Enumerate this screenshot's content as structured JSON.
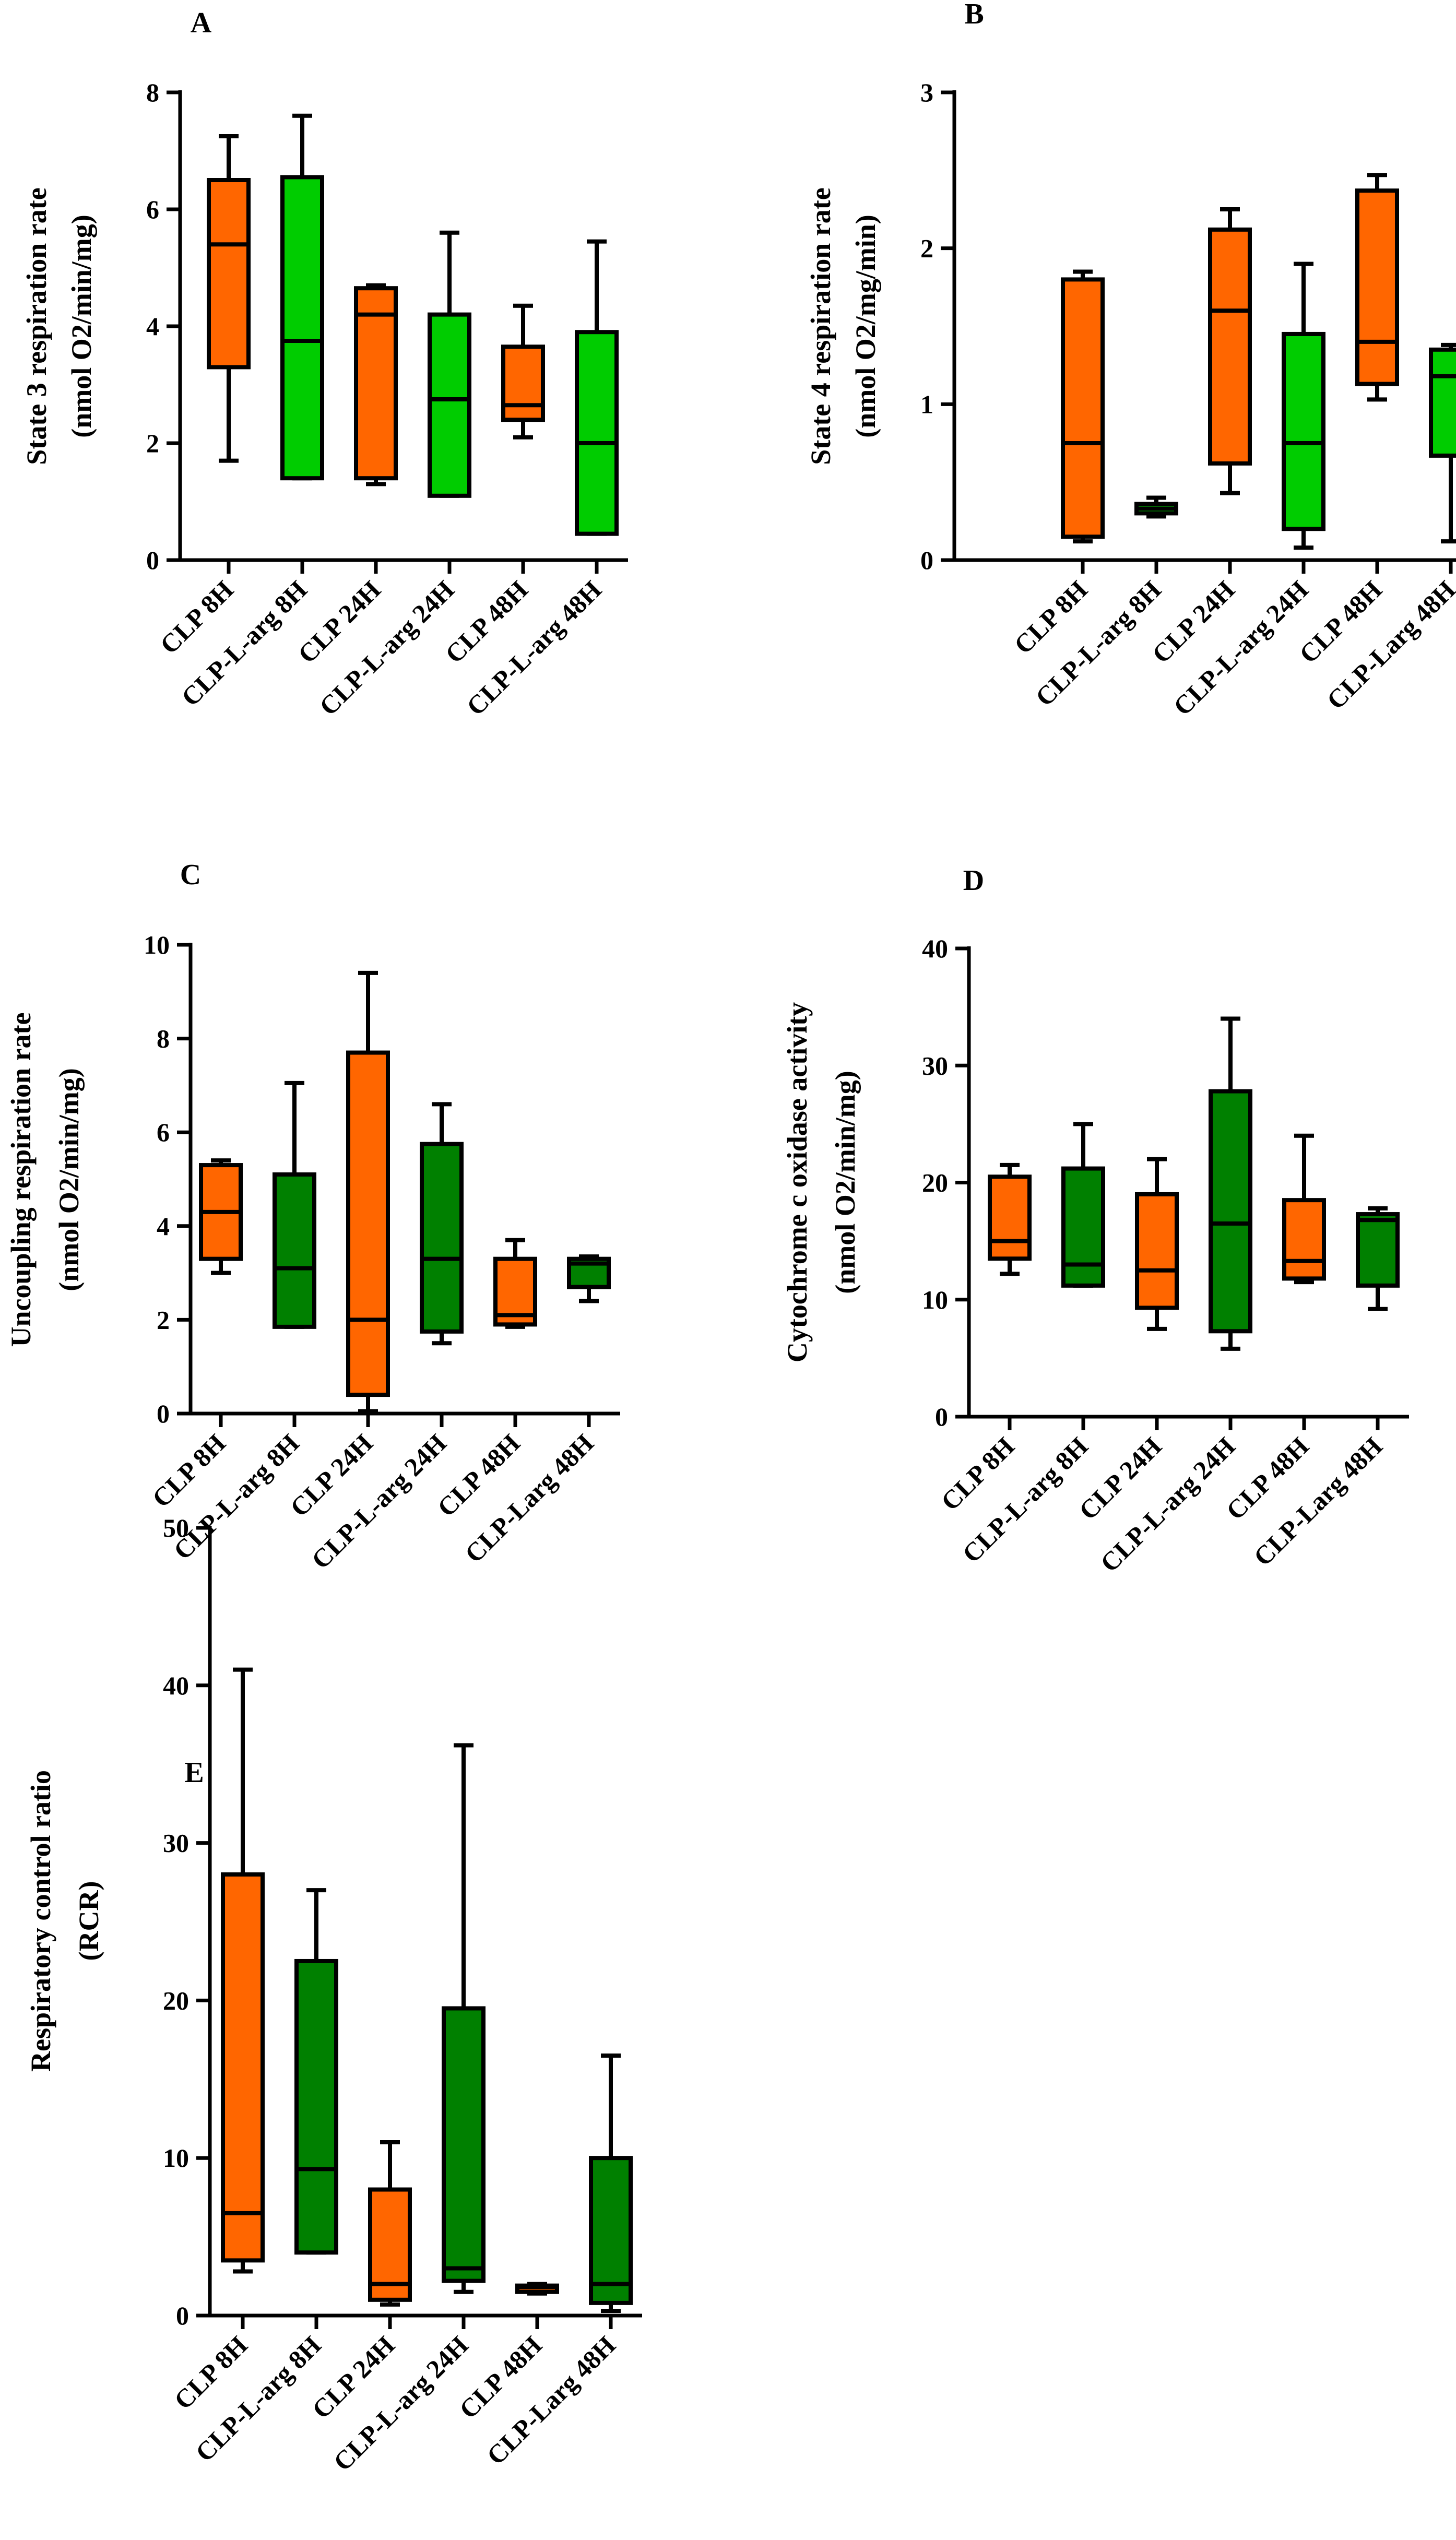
{
  "chart_data": [
    {
      "type": "box",
      "panel_label": "A",
      "ylabel": [
        "State 3 respiration rate",
        "(nmol O2/min/mg)"
      ],
      "ylim": [
        0,
        8
      ],
      "yticks": [
        0,
        2,
        4,
        6,
        8
      ],
      "categories": [
        "CLP 8H",
        "CLP-L-arg 8H",
        "CLP 24H",
        "CLP-L-arg 24H",
        "CLP 48H",
        "CLP-L-arg 48H"
      ],
      "boxes": [
        {
          "min": 1.7,
          "q1": 3.3,
          "median": 5.4,
          "q3": 6.5,
          "max": 7.25,
          "color": "#FF6600"
        },
        {
          "min": 1.4,
          "q1": 1.4,
          "median": 3.75,
          "q3": 6.55,
          "max": 7.6,
          "color": "#00CC00"
        },
        {
          "min": 1.3,
          "q1": 1.4,
          "median": 4.2,
          "q3": 4.65,
          "max": 4.7,
          "color": "#FF6600"
        },
        {
          "min": 1.1,
          "q1": 1.1,
          "median": 2.75,
          "q3": 4.2,
          "max": 5.6,
          "color": "#00CC00"
        },
        {
          "min": 2.1,
          "q1": 2.4,
          "median": 2.65,
          "q3": 3.65,
          "max": 4.35,
          "color": "#FF6600"
        },
        {
          "min": 0.45,
          "q1": 0.45,
          "median": 2.0,
          "q3": 3.9,
          "max": 5.45,
          "color": "#00CC00"
        }
      ]
    },
    {
      "type": "box",
      "panel_label": "B",
      "ylabel": [
        "State 4 respiration rate",
        "(nmol O2/mg/min)"
      ],
      "ylim": [
        0,
        3
      ],
      "yticks": [
        0,
        1,
        2,
        3
      ],
      "categories": [
        "CLP 8H",
        "CLP-L-arg 8H",
        "CLP 24H",
        "CLP-L-arg 24H",
        "CLP 48H",
        "CLP-Larg 48H"
      ],
      "boxes": [
        {
          "min": 0.12,
          "q1": 0.15,
          "median": 0.75,
          "q3": 1.8,
          "max": 1.85,
          "color": "#FF6600"
        },
        {
          "min": 0.28,
          "q1": 0.3,
          "median": 0.33,
          "q3": 0.36,
          "max": 0.4,
          "color": "#00CC00"
        },
        {
          "min": 0.43,
          "q1": 0.62,
          "median": 1.6,
          "q3": 2.12,
          "max": 2.25,
          "color": "#FF6600"
        },
        {
          "min": 0.08,
          "q1": 0.2,
          "median": 0.75,
          "q3": 1.45,
          "max": 1.9,
          "color": "#00CC00"
        },
        {
          "min": 1.03,
          "q1": 1.13,
          "median": 1.4,
          "q3": 2.37,
          "max": 2.47,
          "color": "#FF6600"
        },
        {
          "min": 0.12,
          "q1": 0.67,
          "median": 1.18,
          "q3": 1.35,
          "max": 1.38,
          "color": "#00CC00"
        }
      ]
    },
    {
      "type": "box",
      "panel_label": "C",
      "ylabel": [
        "Uncoupling respiration rate",
        "(nmol O2/min/mg)"
      ],
      "ylim": [
        0,
        10
      ],
      "yticks": [
        0,
        2,
        4,
        6,
        8,
        10
      ],
      "categories": [
        "CLP 8H",
        "CLP-L-arg 8H",
        "CLP 24H",
        "CLP-L-arg 24H",
        "CLP 48H",
        "CLP-Larg 48H"
      ],
      "boxes": [
        {
          "min": 3.0,
          "q1": 3.3,
          "median": 4.3,
          "q3": 5.3,
          "max": 5.4,
          "color": "#FF6600"
        },
        {
          "min": 1.85,
          "q1": 1.85,
          "median": 3.1,
          "q3": 5.1,
          "max": 7.05,
          "color": "#008000"
        },
        {
          "min": 0.05,
          "q1": 0.4,
          "median": 2.0,
          "q3": 7.7,
          "max": 9.4,
          "color": "#FF6600"
        },
        {
          "min": 1.5,
          "q1": 1.75,
          "median": 3.3,
          "q3": 5.75,
          "max": 6.6,
          "color": "#008000"
        },
        {
          "min": 1.85,
          "q1": 1.9,
          "median": 2.1,
          "q3": 3.3,
          "max": 3.7,
          "color": "#FF6600"
        },
        {
          "min": 2.4,
          "q1": 2.7,
          "median": 3.2,
          "q3": 3.3,
          "max": 3.35,
          "color": "#008000"
        }
      ]
    },
    {
      "type": "box",
      "panel_label": "D",
      "ylabel": [
        "Cytochrome c oxidase activity",
        "(nmol O2/min/mg)"
      ],
      "ylim": [
        0,
        40
      ],
      "yticks": [
        0,
        10,
        20,
        30,
        40
      ],
      "categories": [
        "CLP 8H",
        "CLP-L-arg 8H",
        "CLP 24H",
        "CLP-L-arg 24H",
        "CLP 48H",
        "CLP-Larg 48H"
      ],
      "boxes": [
        {
          "min": 12.2,
          "q1": 13.5,
          "median": 15.0,
          "q3": 20.5,
          "max": 21.5,
          "color": "#FF6600"
        },
        {
          "min": 11.2,
          "q1": 11.2,
          "median": 13.0,
          "q3": 21.2,
          "max": 25.0,
          "color": "#008000"
        },
        {
          "min": 7.5,
          "q1": 9.3,
          "median": 12.5,
          "q3": 19.0,
          "max": 22.0,
          "color": "#FF6600"
        },
        {
          "min": 5.8,
          "q1": 7.3,
          "median": 16.5,
          "q3": 27.8,
          "max": 34.0,
          "color": "#008000"
        },
        {
          "min": 11.5,
          "q1": 11.8,
          "median": 13.3,
          "q3": 18.5,
          "max": 24.0,
          "color": "#FF6600"
        },
        {
          "min": 9.2,
          "q1": 11.2,
          "median": 16.8,
          "q3": 17.3,
          "max": 17.8,
          "color": "#008000"
        }
      ]
    },
    {
      "type": "box",
      "panel_label": "E",
      "ylabel": [
        "Respiratory control ratio",
        "(RCR)"
      ],
      "ylim": [
        0,
        50
      ],
      "yticks": [
        0,
        10,
        20,
        30,
        40,
        50
      ],
      "categories": [
        "CLP 8H",
        "CLP-L-arg 8H",
        "CLP 24H",
        "CLP-L-arg 24H",
        "CLP 48H",
        "CLP-Larg 48H"
      ],
      "boxes": [
        {
          "min": 2.8,
          "q1": 3.5,
          "median": 6.5,
          "q3": 28.0,
          "max": 41.0,
          "color": "#FF6600"
        },
        {
          "min": 4.0,
          "q1": 4.0,
          "median": 9.3,
          "q3": 22.5,
          "max": 27.0,
          "color": "#008000"
        },
        {
          "min": 0.7,
          "q1": 1.0,
          "median": 2.0,
          "q3": 8.0,
          "max": 11.0,
          "color": "#FF6600"
        },
        {
          "min": 1.5,
          "q1": 2.2,
          "median": 3.0,
          "q3": 19.5,
          "max": 36.2,
          "color": "#008000"
        },
        {
          "min": 1.4,
          "q1": 1.5,
          "median": 1.8,
          "q3": 1.9,
          "max": 2.0,
          "color": "#FF6600"
        },
        {
          "min": 0.3,
          "q1": 0.8,
          "median": 2.0,
          "q3": 10.0,
          "max": 16.5,
          "color": "#008000"
        }
      ]
    }
  ]
}
